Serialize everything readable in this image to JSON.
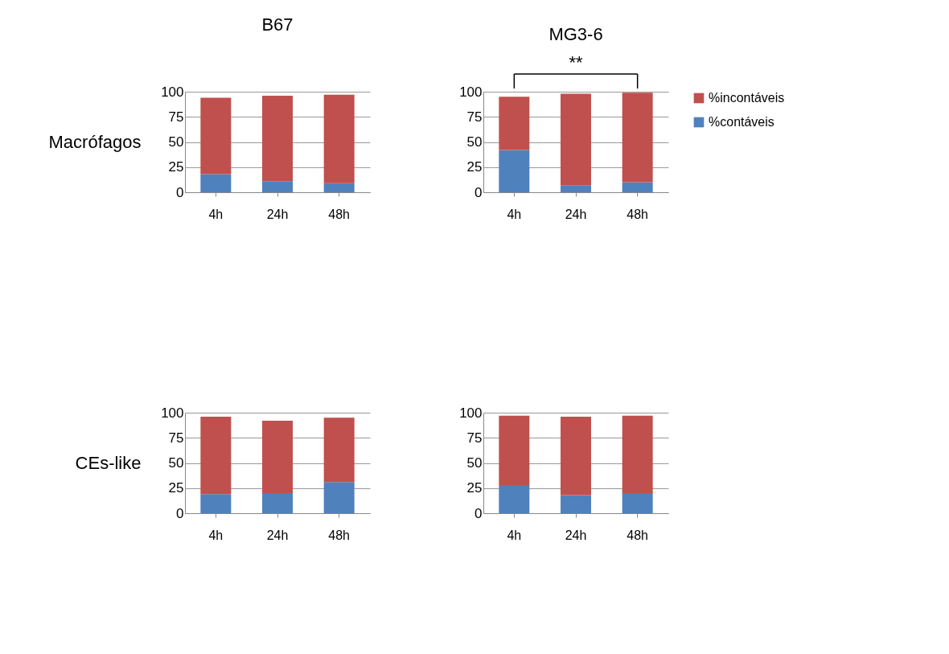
{
  "chart_data": [
    {
      "type": "bar",
      "title": "B67",
      "ylabel": "Macrófagos",
      "stacked": true,
      "categories": [
        "4h",
        "24h",
        "48h"
      ],
      "ylim": [
        0,
        100
      ],
      "yticks": [
        0,
        25,
        50,
        75,
        100
      ],
      "grid": "y",
      "series": [
        {
          "color": "#4f81bd",
          "values": [
            18,
            11,
            9
          ]
        },
        {
          "color": "#c0504d",
          "values": [
            76,
            85,
            88
          ]
        }
      ]
    },
    {
      "type": "bar",
      "title": "MG3-6",
      "stacked": true,
      "categories": [
        "4h",
        "24h",
        "48h"
      ],
      "ylim": [
        0,
        100
      ],
      "yticks": [
        0,
        25,
        50,
        75,
        100
      ],
      "grid": "y",
      "legend": "right",
      "annotations": [
        "**"
      ],
      "series": [
        {
          "name": "%contáveis",
          "color": "#4f81bd",
          "values": [
            42,
            7,
            10
          ]
        },
        {
          "name": "%incontáveis",
          "color": "#c0504d",
          "values": [
            53,
            91,
            89
          ]
        }
      ]
    },
    {
      "type": "bar",
      "ylabel": "CEs-like",
      "stacked": true,
      "categories": [
        "4h",
        "24h",
        "48h"
      ],
      "ylim": [
        0,
        100
      ],
      "yticks": [
        0,
        25,
        50,
        75,
        100
      ],
      "grid": "y",
      "series": [
        {
          "color": "#4f81bd",
          "values": [
            19,
            20,
            31
          ]
        },
        {
          "color": "#c0504d",
          "values": [
            77,
            72,
            64
          ]
        }
      ]
    },
    {
      "type": "bar",
      "stacked": true,
      "categories": [
        "4h",
        "24h",
        "48h"
      ],
      "ylim": [
        0,
        100
      ],
      "yticks": [
        0,
        25,
        50,
        75,
        100
      ],
      "grid": "y",
      "series": [
        {
          "color": "#4f81bd",
          "values": [
            28,
            18,
            20
          ]
        },
        {
          "color": "#c0504d",
          "values": [
            69,
            78,
            77
          ]
        }
      ]
    }
  ]
}
